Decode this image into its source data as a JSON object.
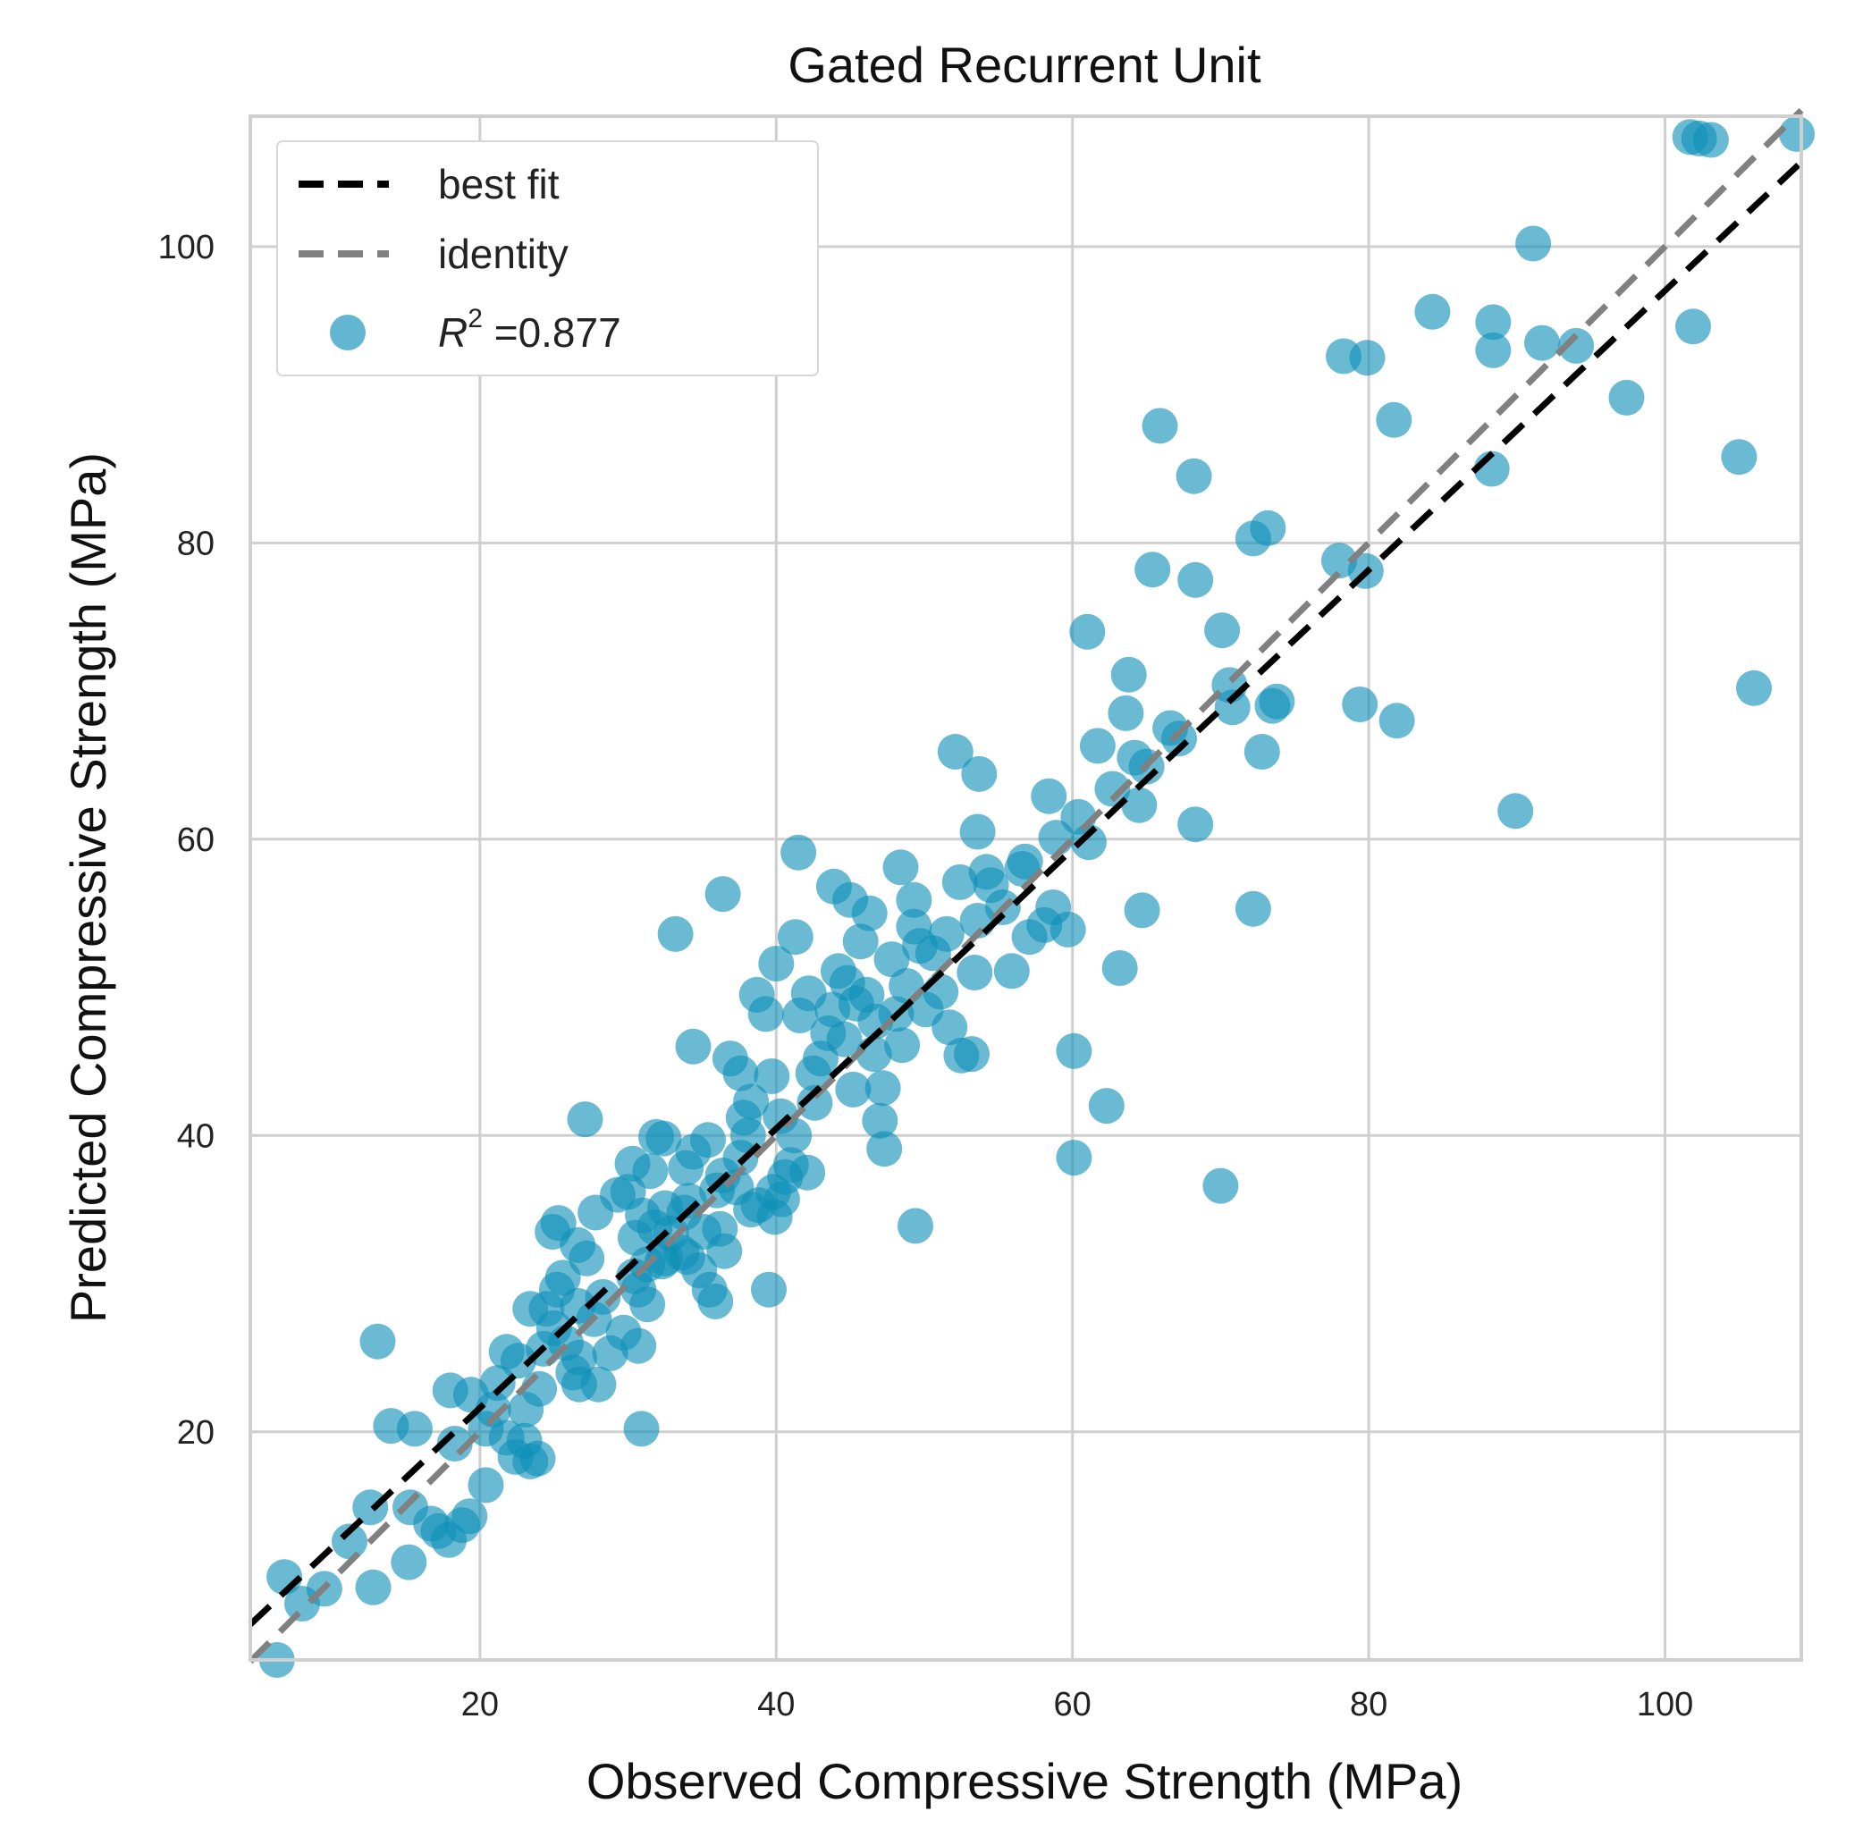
{
  "chart_data": {
    "type": "scatter",
    "title": "Gated Recurrent Unit",
    "xlabel": "Observed Compressive Strength (MPa)",
    "ylabel": "Predicted Compressive Strength (MPa)",
    "xlim": [
      4.5,
      109.2
    ],
    "ylim": [
      4.6,
      108.8
    ],
    "xticks": [
      20,
      40,
      60,
      80,
      100
    ],
    "yticks": [
      20,
      40,
      60,
      80,
      100
    ],
    "grid": true,
    "legend": {
      "position": "top-left",
      "entries": [
        {
          "label": "best fit",
          "kind": "line",
          "color": "#000000",
          "dash": "dashed"
        },
        {
          "label": "identity",
          "kind": "line",
          "color": "#808080",
          "dash": "dashed"
        },
        {
          "label_prefix": "R",
          "label_sup": "2",
          "label_suffix": " =0.877",
          "kind": "marker",
          "color": "#0e8fb8"
        }
      ]
    },
    "colors": {
      "points": "#0e8fb8",
      "best_fit": "#000000",
      "identity": "#808080",
      "grid": "#cfcfcf",
      "frame": "#cfcfcf"
    },
    "lines": {
      "best_fit": {
        "x": [
          4.5,
          109.2
        ],
        "y": [
          7.0,
          105.7
        ]
      },
      "identity": {
        "x": [
          4.5,
          109.2
        ],
        "y": [
          4.5,
          109.2
        ]
      }
    },
    "points": [
      [
        6.3,
        4.6
      ],
      [
        6.8,
        10.2
      ],
      [
        8.0,
        8.4
      ],
      [
        9.5,
        9.4
      ],
      [
        11.2,
        12.6
      ],
      [
        12.8,
        9.5
      ],
      [
        12.6,
        14.9
      ],
      [
        13.1,
        26.1
      ],
      [
        15.2,
        11.2
      ],
      [
        14.0,
        20.4
      ],
      [
        15.6,
        20.2
      ],
      [
        15.3,
        14.9
      ],
      [
        16.7,
        13.8
      ],
      [
        17.2,
        13.3
      ],
      [
        17.9,
        12.7
      ],
      [
        18.8,
        13.7
      ],
      [
        18.3,
        19.2
      ],
      [
        18.0,
        22.8
      ],
      [
        19.4,
        22.5
      ],
      [
        19.3,
        14.3
      ],
      [
        20.4,
        16.4
      ],
      [
        20.4,
        20.2
      ],
      [
        20.9,
        21.5
      ],
      [
        21.2,
        23.3
      ],
      [
        21.8,
        19.6
      ],
      [
        21.8,
        25.4
      ],
      [
        22.4,
        18.3
      ],
      [
        23.0,
        19.4
      ],
      [
        22.6,
        24.8
      ],
      [
        23.1,
        21.5
      ],
      [
        23.4,
        18.0
      ],
      [
        23.9,
        18.2
      ],
      [
        23.4,
        28.3
      ],
      [
        24.0,
        22.9
      ],
      [
        24.3,
        25.6
      ],
      [
        24.5,
        28.3
      ],
      [
        24.9,
        33.5
      ],
      [
        25.3,
        34.1
      ],
      [
        25.2,
        29.6
      ],
      [
        25.6,
        30.4
      ],
      [
        25.0,
        27.0
      ],
      [
        25.8,
        26.0
      ],
      [
        26.3,
        24.0
      ],
      [
        26.7,
        23.2
      ],
      [
        26.6,
        28.5
      ],
      [
        26.6,
        32.6
      ],
      [
        26.7,
        25.0
      ],
      [
        27.1,
        41.1
      ],
      [
        27.2,
        31.7
      ],
      [
        27.7,
        27.6
      ],
      [
        27.8,
        34.8
      ],
      [
        28.0,
        23.2
      ],
      [
        28.3,
        29.1
      ],
      [
        28.8,
        25.3
      ],
      [
        29.3,
        36.0
      ],
      [
        29.7,
        26.7
      ],
      [
        30.0,
        36.2
      ],
      [
        30.3,
        38.1
      ],
      [
        30.5,
        33.1
      ],
      [
        30.7,
        25.8
      ],
      [
        30.4,
        30.5
      ],
      [
        30.7,
        29.6
      ],
      [
        30.9,
        20.2
      ],
      [
        31.0,
        34.6
      ],
      [
        31.3,
        31.3
      ],
      [
        31.3,
        28.6
      ],
      [
        31.5,
        37.6
      ],
      [
        31.9,
        39.9
      ],
      [
        31.8,
        33.8
      ],
      [
        32.4,
        39.8
      ],
      [
        32.5,
        35.1
      ],
      [
        32.3,
        31.5
      ],
      [
        32.5,
        31.7
      ],
      [
        32.9,
        33.4
      ],
      [
        33.2,
        53.6
      ],
      [
        33.6,
        32.1
      ],
      [
        33.8,
        34.8
      ],
      [
        34.1,
        35.6
      ],
      [
        34.0,
        31.8
      ],
      [
        33.9,
        37.8
      ],
      [
        34.4,
        46.0
      ],
      [
        34.4,
        38.9
      ],
      [
        34.8,
        30.9
      ],
      [
        35.1,
        33.5
      ],
      [
        35.4,
        39.7
      ],
      [
        35.5,
        29.6
      ],
      [
        35.9,
        28.8
      ],
      [
        36.0,
        36.3
      ],
      [
        36.2,
        33.7
      ],
      [
        36.4,
        56.3
      ],
      [
        36.4,
        37.3
      ],
      [
        36.5,
        32.2
      ],
      [
        36.9,
        45.2
      ],
      [
        37.3,
        36.5
      ],
      [
        37.6,
        44.2
      ],
      [
        37.6,
        38.5
      ],
      [
        37.8,
        41.2
      ],
      [
        38.1,
        40.0
      ],
      [
        38.3,
        35.0
      ],
      [
        38.3,
        42.3
      ],
      [
        38.7,
        49.5
      ],
      [
        38.8,
        35.3
      ],
      [
        39.3,
        48.2
      ],
      [
        39.5,
        29.6
      ],
      [
        39.8,
        36.2
      ],
      [
        39.9,
        34.5
      ],
      [
        39.7,
        44.0
      ],
      [
        40.0,
        51.6
      ],
      [
        40.4,
        35.7
      ],
      [
        40.3,
        41.3
      ],
      [
        40.6,
        37.2
      ],
      [
        41.0,
        38.0
      ],
      [
        41.2,
        40.0
      ],
      [
        41.6,
        48.1
      ],
      [
        41.3,
        53.4
      ],
      [
        41.5,
        59.1
      ],
      [
        42.1,
        37.5
      ],
      [
        42.2,
        49.6
      ],
      [
        42.5,
        44.2
      ],
      [
        42.6,
        42.2
      ],
      [
        43.0,
        45.2
      ],
      [
        43.5,
        46.9
      ],
      [
        43.9,
        56.8
      ],
      [
        43.8,
        48.5
      ],
      [
        44.2,
        51.1
      ],
      [
        44.6,
        46.5
      ],
      [
        44.8,
        50.3
      ],
      [
        45.0,
        55.9
      ],
      [
        45.2,
        43.1
      ],
      [
        45.4,
        48.9
      ],
      [
        45.7,
        53.1
      ],
      [
        46.1,
        49.5
      ],
      [
        46.3,
        55.0
      ],
      [
        46.6,
        45.5
      ],
      [
        46.7,
        47.7
      ],
      [
        47.0,
        41.0
      ],
      [
        47.2,
        43.2
      ],
      [
        47.3,
        39.1
      ],
      [
        47.8,
        51.9
      ],
      [
        48.1,
        48.2
      ],
      [
        48.4,
        58.1
      ],
      [
        48.5,
        46.1
      ],
      [
        48.8,
        50.1
      ],
      [
        49.3,
        55.9
      ],
      [
        49.4,
        33.9
      ],
      [
        49.3,
        54.1
      ],
      [
        49.7,
        52.8
      ],
      [
        50.1,
        48.5
      ],
      [
        50.6,
        52.3
      ],
      [
        51.1,
        49.7
      ],
      [
        51.5,
        53.6
      ],
      [
        51.7,
        47.3
      ],
      [
        52.1,
        65.9
      ],
      [
        52.4,
        57.1
      ],
      [
        52.5,
        45.4
      ],
      [
        53.2,
        45.5
      ],
      [
        53.4,
        51.0
      ],
      [
        53.6,
        54.5
      ],
      [
        53.6,
        60.5
      ],
      [
        53.7,
        64.4
      ],
      [
        54.2,
        57.8
      ],
      [
        54.5,
        56.9
      ],
      [
        55.3,
        55.4
      ],
      [
        55.9,
        51.1
      ],
      [
        56.6,
        58.0
      ],
      [
        56.8,
        58.5
      ],
      [
        57.1,
        53.4
      ],
      [
        58.1,
        54.2
      ],
      [
        58.4,
        62.9
      ],
      [
        58.7,
        55.4
      ],
      [
        58.9,
        60.1
      ],
      [
        59.7,
        53.9
      ],
      [
        60.1,
        45.7
      ],
      [
        60.1,
        38.5
      ],
      [
        60.4,
        61.5
      ],
      [
        61.0,
        74.0
      ],
      [
        61.1,
        59.8
      ],
      [
        61.7,
        66.3
      ],
      [
        62.3,
        42.0
      ],
      [
        62.7,
        63.4
      ],
      [
        63.2,
        51.3
      ],
      [
        63.6,
        68.5
      ],
      [
        63.8,
        71.1
      ],
      [
        64.2,
        65.5
      ],
      [
        64.5,
        62.3
      ],
      [
        64.7,
        55.2
      ],
      [
        65.0,
        64.9
      ],
      [
        65.4,
        78.2
      ],
      [
        65.9,
        87.9
      ],
      [
        66.6,
        67.5
      ],
      [
        67.2,
        66.8
      ],
      [
        68.2,
        84.5
      ],
      [
        68.3,
        77.5
      ],
      [
        68.3,
        61.0
      ],
      [
        70.0,
        36.6
      ],
      [
        70.1,
        74.1
      ],
      [
        70.6,
        70.4
      ],
      [
        70.8,
        68.9
      ],
      [
        72.2,
        80.3
      ],
      [
        72.2,
        55.3
      ],
      [
        72.8,
        65.9
      ],
      [
        73.2,
        81.0
      ],
      [
        73.5,
        69.0
      ],
      [
        73.8,
        69.3
      ],
      [
        78.0,
        78.8
      ],
      [
        78.3,
        92.6
      ],
      [
        79.4,
        69.1
      ],
      [
        79.8,
        78.1
      ],
      [
        79.9,
        92.5
      ],
      [
        81.7,
        88.3
      ],
      [
        81.9,
        68.0
      ],
      [
        84.3,
        95.6
      ],
      [
        88.3,
        85.0
      ],
      [
        88.4,
        93.0
      ],
      [
        88.4,
        94.9
      ],
      [
        89.9,
        61.9
      ],
      [
        91.1,
        100.2
      ],
      [
        91.7,
        93.5
      ],
      [
        94.0,
        93.3
      ],
      [
        97.4,
        89.8
      ],
      [
        101.7,
        107.4
      ],
      [
        101.9,
        94.6
      ],
      [
        102.3,
        107.3
      ],
      [
        103.1,
        107.2
      ],
      [
        105.0,
        85.8
      ],
      [
        106.0,
        70.2
      ],
      [
        108.9,
        107.6
      ]
    ]
  }
}
